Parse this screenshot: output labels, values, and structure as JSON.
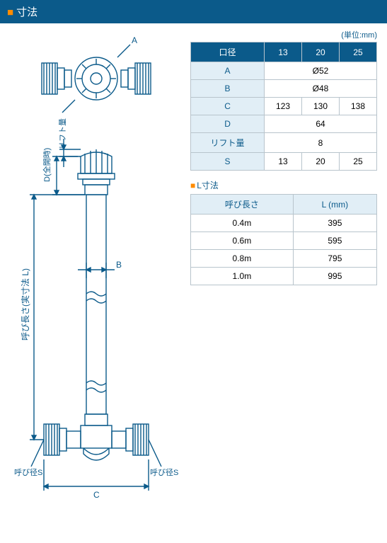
{
  "header": {
    "title": "寸法"
  },
  "unit_label": "(単位:mm)",
  "dim_table": {
    "header": {
      "label": "口径",
      "cols": [
        "13",
        "20",
        "25"
      ]
    },
    "rows": [
      {
        "label": "A",
        "span": true,
        "value": "Ø52"
      },
      {
        "label": "B",
        "span": true,
        "value": "Ø48"
      },
      {
        "label": "C",
        "span": false,
        "values": [
          "123",
          "130",
          "138"
        ]
      },
      {
        "label": "D",
        "span": true,
        "value": "64"
      },
      {
        "label": "リフト量",
        "span": true,
        "value": "8"
      },
      {
        "label": "S",
        "span": false,
        "values": [
          "13",
          "20",
          "25"
        ]
      }
    ],
    "colors": {
      "header_bg": "#0b5a8a",
      "header_fg": "#ffffff",
      "label_bg": "#e1eef6",
      "label_fg": "#0b5a8a",
      "border": "#b8c4cc"
    }
  },
  "l_section_title": "L寸法",
  "l_table": {
    "headers": [
      "呼び長さ",
      "L (mm)"
    ],
    "rows": [
      [
        "0.4m",
        "395"
      ],
      [
        "0.6m",
        "595"
      ],
      [
        "0.8m",
        "795"
      ],
      [
        "1.0m",
        "995"
      ]
    ]
  },
  "diagram": {
    "stroke": "#0b5a8a",
    "fill": "none",
    "labels": {
      "A": "A",
      "B": "B",
      "C": "C",
      "D": "D(全開時)",
      "lift": "リフト量",
      "length": "呼び長さ(実寸法 L)",
      "radiusS_left": "呼び径S",
      "radiusS_right": "呼び径S"
    }
  }
}
